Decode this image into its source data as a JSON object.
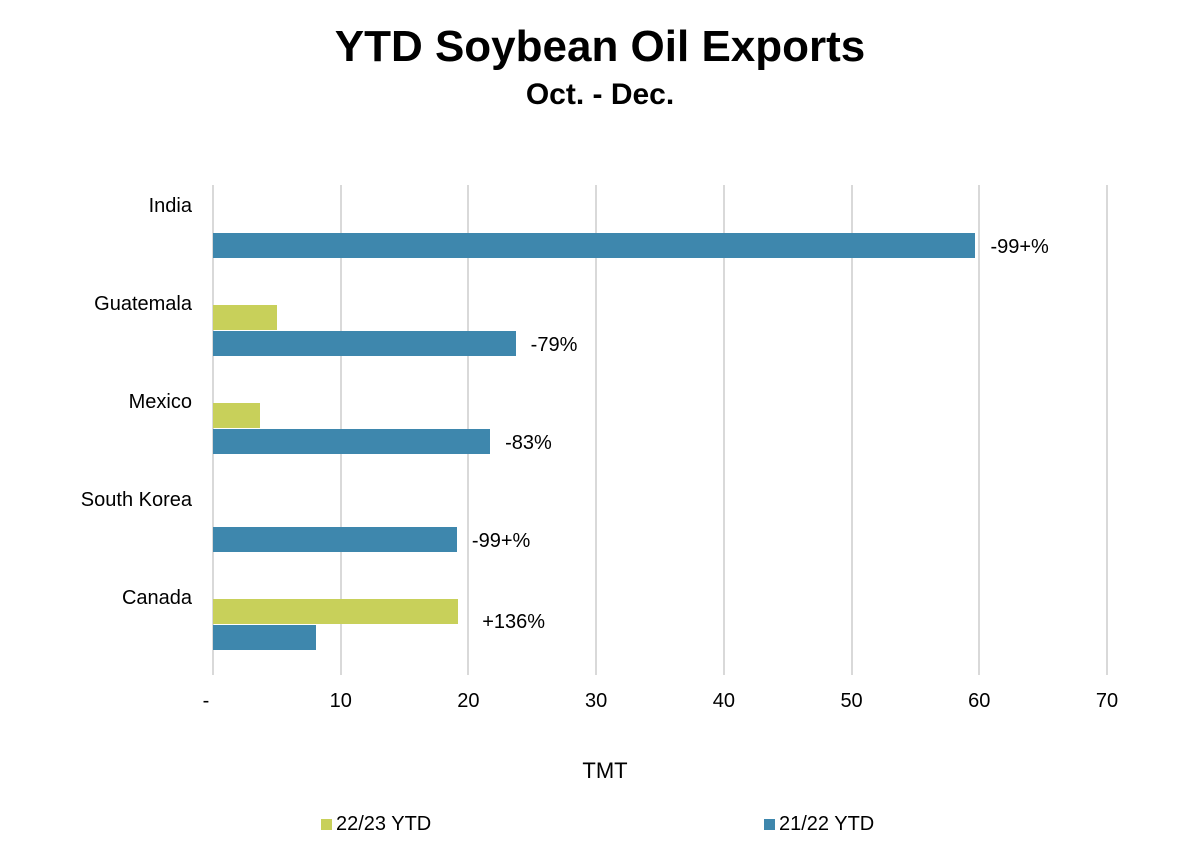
{
  "header": {
    "title": "YTD Soybean Oil Exports",
    "subtitle": "Oct. - Dec."
  },
  "colors": {
    "series_2223": "#c8d05a",
    "series_2122": "#3e87ad",
    "grid": "#d9d9d9"
  },
  "axis": {
    "xlabel": "TMT",
    "ticks": [
      "-",
      "10",
      "20",
      "30",
      "40",
      "50",
      "60",
      "70"
    ]
  },
  "legend": {
    "items": [
      {
        "label": "22/23 YTD"
      },
      {
        "label": "21/22 YTD"
      }
    ]
  },
  "rows": [
    {
      "category": "India",
      "label": "-99+%"
    },
    {
      "category": "Guatemala",
      "label": "-79%"
    },
    {
      "category": "Mexico",
      "label": "-83%"
    },
    {
      "category": "South Korea",
      "label": "-99+%"
    },
    {
      "category": "Canada",
      "label": "+136%"
    }
  ],
  "chart_data": {
    "type": "bar",
    "orientation": "horizontal",
    "title": "YTD Soybean Oil Exports",
    "subtitle": "Oct. - Dec.",
    "xlabel": "TMT",
    "ylabel": "",
    "xlim": [
      0,
      70
    ],
    "x_ticks": [
      "-",
      "10",
      "20",
      "30",
      "40",
      "50",
      "60",
      "70"
    ],
    "grid": "vertical",
    "legend_position": "bottom",
    "categories": [
      "India",
      "Guatemala",
      "Mexico",
      "South Korea",
      "Canada"
    ],
    "series": [
      {
        "name": "22/23 YTD",
        "color": "#c8d05a",
        "values": [
          0,
          5.0,
          3.7,
          0,
          19.2
        ]
      },
      {
        "name": "21/22 YTD",
        "color": "#3e87ad",
        "values": [
          59.7,
          23.7,
          21.7,
          19.1,
          8.1
        ]
      }
    ],
    "annotations": [
      "-99+%",
      "-79%",
      "-83%",
      "-99+%",
      "+136%"
    ]
  }
}
